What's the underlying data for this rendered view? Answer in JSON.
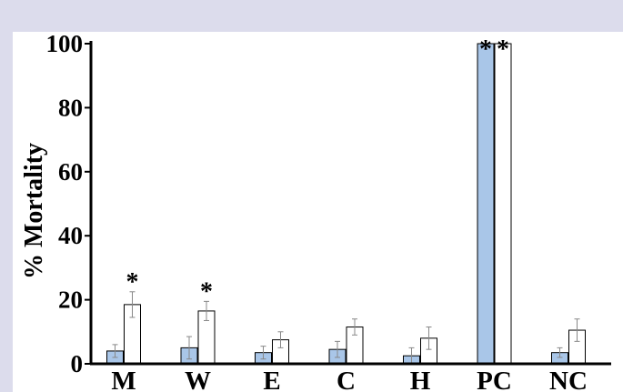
{
  "colors": {
    "frame": "#dcdcec",
    "series_filled": "#a9c6e8",
    "series_open": "#ffffff",
    "outline": "#000000",
    "error_bar": "#888888"
  },
  "chart_data": {
    "type": "bar",
    "ylabel": "% Mortality",
    "ylim": [
      0,
      100
    ],
    "yticks": [
      "0",
      "20",
      "40",
      "60",
      "80",
      "100"
    ],
    "categories": [
      "M",
      "W",
      "E",
      "C",
      "H",
      "PC",
      "NC"
    ],
    "grid": false,
    "legend": "none",
    "series": [
      {
        "color": "#a9c6e8",
        "values": [
          4,
          5,
          3.5,
          4.5,
          2.5,
          100,
          3.5
        ],
        "errors": [
          2,
          3.5,
          2,
          2.5,
          2.5,
          0,
          1.5
        ],
        "significant": [
          false,
          false,
          false,
          false,
          false,
          true,
          false
        ]
      },
      {
        "color": "#ffffff",
        "values": [
          18.5,
          16.5,
          7.5,
          11.5,
          8,
          100,
          10.5
        ],
        "errors": [
          4,
          3,
          2.5,
          2.5,
          3.5,
          0,
          3.5
        ],
        "significant": [
          true,
          true,
          false,
          false,
          false,
          true,
          false
        ]
      }
    ],
    "significance_marker": "*"
  }
}
